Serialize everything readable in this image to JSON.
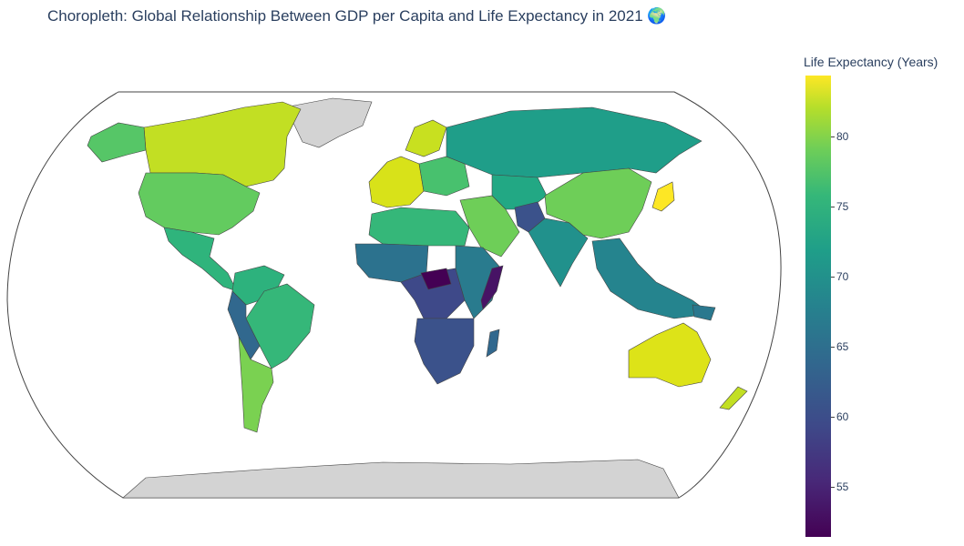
{
  "title": "Choropleth: Global Relationship Between GDP per Capita and Life Expectancy in 2021 🌍",
  "colorbar": {
    "title": "Life Expectancy (Years)",
    "min": 51.6,
    "max": 84.8,
    "ticks": [
      "80",
      "75",
      "70",
      "65",
      "60",
      "55"
    ],
    "colorscale": [
      "#440154",
      "#482878",
      "#3e4989",
      "#31688e",
      "#26828e",
      "#1f9e89",
      "#35b779",
      "#6ece58",
      "#b5de2b",
      "#fde725"
    ]
  },
  "colors": {
    "no_data": "#d3d3d3",
    "land_border": "#444444",
    "frame": "#444444"
  }
}
